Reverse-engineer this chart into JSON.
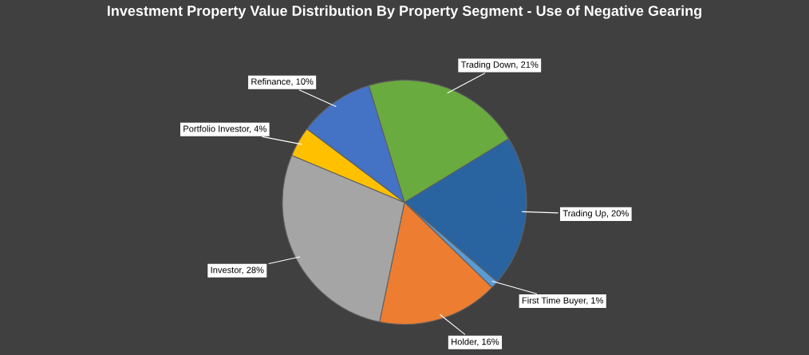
{
  "chart_data": {
    "type": "pie",
    "title": "Investment Property Value Distribution By Property Segment - Use of Negative Gearing",
    "categories": [
      "Trading Down",
      "Trading Up",
      "First Time Buyer",
      "Holder",
      "Investor",
      "Portfolio Investor",
      "Refinance"
    ],
    "values": [
      21,
      20,
      1,
      16,
      28,
      4,
      10
    ],
    "value_labels": [
      "21%",
      "20%",
      "1%",
      "16%",
      "28%",
      "4%",
      "10%"
    ],
    "colors": [
      "#6aab3f",
      "#2a64a0",
      "#5b9bd5",
      "#ed7d31",
      "#a5a5a5",
      "#ffc000",
      "#4472c4"
    ],
    "legend": false
  }
}
